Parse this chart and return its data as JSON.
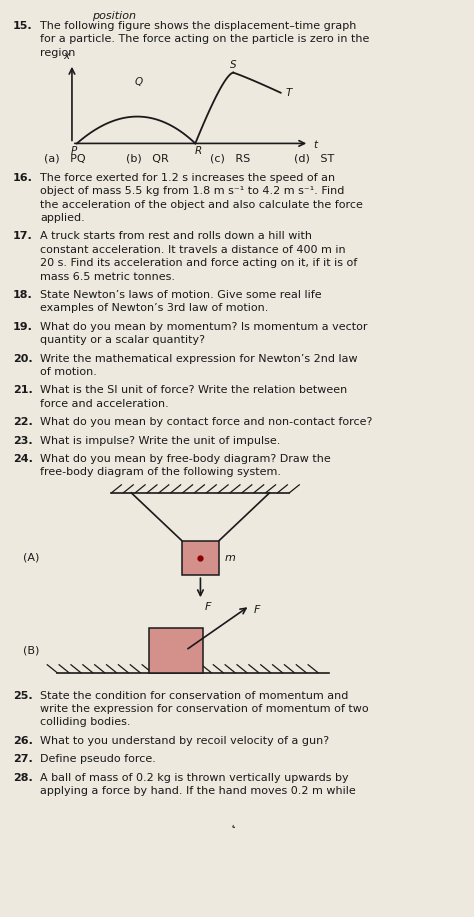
{
  "bg_color": "#ede9df",
  "text_color": "#1a1a1a",
  "questions": [
    {
      "num": "15.",
      "text": "The following figure shows the displacement–time graph\nfor a particle. The force acting on the particle is zero in the\nregion"
    },
    {
      "num": "16.",
      "text": "The force exerted for 1.2 s increases the speed of an\nobject of mass 5.5 kg from 1.8 m s⁻¹ to 4.2 m s⁻¹. Find\nthe acceleration of the object and also calculate the force\napplied."
    },
    {
      "num": "17.",
      "text": "A truck starts from rest and rolls down a hill with\nconstant acceleration. It travels a distance of 400 m in\n20 s. Find its acceleration and force acting on it, if it is of\nmass 6.5 metric tonnes."
    },
    {
      "num": "18.",
      "text": "State Newton’s laws of motion. Give some real life\nexamples of Newton’s 3rd law of motion."
    },
    {
      "num": "19.",
      "text": "What do you mean by momentum? Is momentum a vector\nquantity or a scalar quantity?"
    },
    {
      "num": "20.",
      "text": "Write the mathematical expression for Newton’s 2nd law\nof motion."
    },
    {
      "num": "21.",
      "text": "What is the SI unit of force? Write the relation between\nforce and acceleration."
    },
    {
      "num": "22.",
      "text": "What do you mean by contact force and non-contact force?"
    },
    {
      "num": "23.",
      "text": "What is impulse? Write the unit of impulse."
    },
    {
      "num": "24.",
      "text": "What do you mean by free-body diagram? Draw the\nfree-body diagram of the following system."
    },
    {
      "num": "25.",
      "text": "State the condition for conservation of momentum and\nwrite the expression for conservation of momentum of two\ncolliding bodies."
    },
    {
      "num": "26.",
      "text": "What to you understand by recoil velocity of a gun?"
    },
    {
      "num": "27.",
      "text": "Define pseudo force."
    },
    {
      "num": "28.",
      "text": "A ball of mass of 0.2 kg is thrown vertically upwards by\napplying a force by hand. If the hand moves 0.2 m while"
    }
  ],
  "q15_options": [
    "(a)   PQ",
    "(b)   QR",
    "(c)   RS",
    "(d)   ST"
  ],
  "box_color": "#d4908a",
  "hatch_color": "#444444"
}
